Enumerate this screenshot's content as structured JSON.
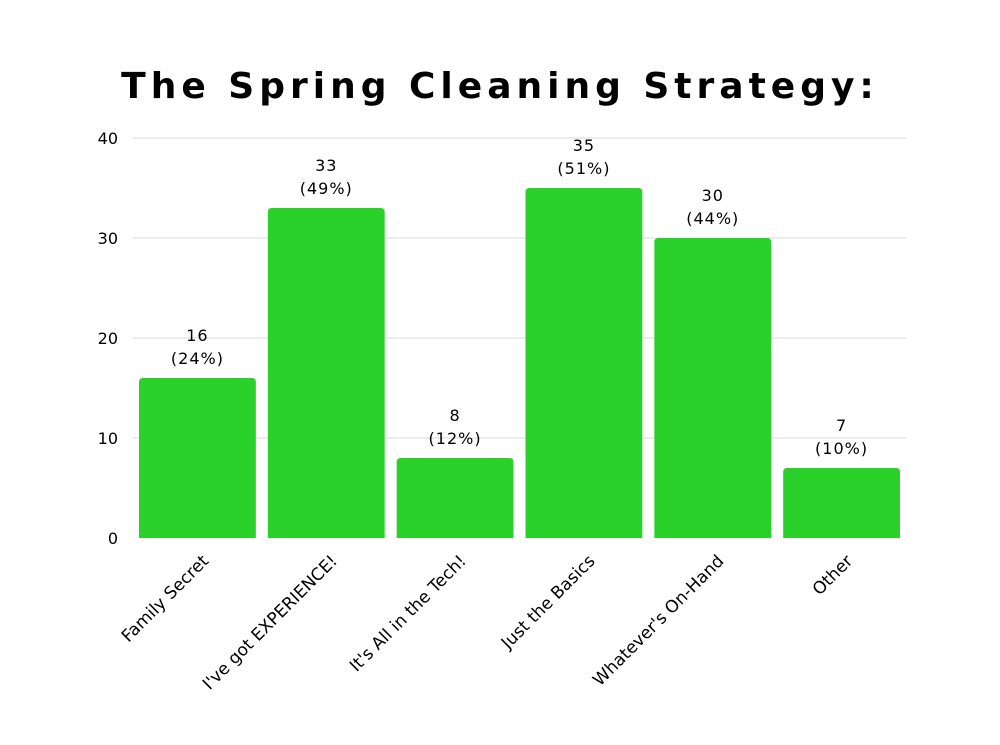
{
  "chart_data": {
    "type": "bar",
    "title": "The Spring Cleaning Strategy:",
    "xlabel": "",
    "ylabel": "",
    "categories": [
      "Family Secret",
      "I've got EXPERIENCE!",
      "It's All in the Tech!",
      "Just the Basics",
      "Whatever's On-Hand",
      "Other"
    ],
    "values": [
      16,
      33,
      8,
      35,
      30,
      7
    ],
    "value_labels": [
      "16",
      "33",
      "8",
      "35",
      "30",
      "7"
    ],
    "percent_labels": [
      "(24%)",
      "(49%)",
      "(12%)",
      "(51%)",
      "(44%)",
      "(10%)"
    ],
    "ylim": [
      0,
      40
    ],
    "yticks": [
      "0",
      "10",
      "20",
      "30",
      "40"
    ],
    "bar_color": "#2ad12a",
    "grid": true,
    "legend": "none"
  }
}
